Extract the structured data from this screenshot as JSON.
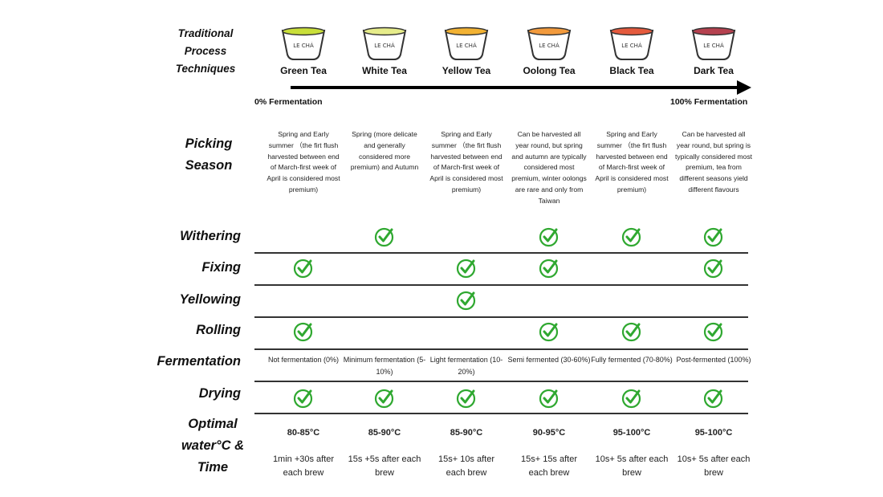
{
  "header": {
    "title": "Traditional Process Techniques"
  },
  "cup_label": "LE CHÁ",
  "teas": [
    {
      "name": "Green Tea",
      "liquor": "#c9df3a"
    },
    {
      "name": "White Tea",
      "liquor": "#e6ec8a"
    },
    {
      "name": "Yellow Tea",
      "liquor": "#f2b233"
    },
    {
      "name": "Oolong Tea",
      "liquor": "#f29a3c"
    },
    {
      "name": "Black Tea",
      "liquor": "#e45a3d"
    },
    {
      "name": "Dark Tea",
      "liquor": "#b5414f"
    }
  ],
  "fermentation_scale": {
    "start": "0% Fermentation",
    "end": "100% Fermentation"
  },
  "rows": {
    "picking_season": "Picking Season",
    "withering": "Withering",
    "fixing": "Fixing",
    "yellowing": "Yellowing",
    "rolling": "Rolling",
    "fermentation": "Fermentation",
    "drying": "Drying",
    "optimal": "Optimal water°C & Time"
  },
  "picking_season": [
    "Spring  and Early summer （the firt flush harvested between end of March-first week of April is considered most premium)",
    "Spring (more delicate and generally considered more premium) and Autumn",
    "Spring  and Early summer （the firt flush harvested between end of March-first week of April is considered most premium)",
    "Can be harvested all year round, but spring and autumn are typically considered most premium, winter oolongs are rare and only from Taiwan",
    "Spring  and Early summer （the firt flush harvested between end of March-first week of April is considered most premium)",
    "Can be harvested all year round, but spring is typically considered most premium, tea from different seasons yield different flavours"
  ],
  "process_checks": {
    "withering": [
      false,
      true,
      false,
      true,
      true,
      true
    ],
    "fixing": [
      true,
      false,
      true,
      true,
      false,
      true
    ],
    "yellowing": [
      false,
      false,
      true,
      false,
      false,
      false
    ],
    "rolling": [
      true,
      false,
      false,
      true,
      true,
      true
    ],
    "drying": [
      true,
      true,
      true,
      true,
      true,
      true
    ]
  },
  "fermentation": [
    "Not fermentation (0%)",
    "Minimum fermentation (5-10%)",
    "Light fermentation (10-20%)",
    "Semi fermented (30-60%)",
    "Fully fermented (70-80%)",
    "Post-fermented (100%)"
  ],
  "temperatures": [
    "80-85°C",
    "85-90°C",
    "85-90°C",
    "90-95°C",
    "95-100°C",
    "95-100°C"
  ],
  "times": [
    "1min +30s after each brew",
    "15s +5s after each brew",
    "15s+ 10s after each brew",
    "15s+ 15s after each brew",
    "10s+ 5s after each brew",
    "10s+ 5s after each brew"
  ],
  "colors": {
    "check": "#2fa830",
    "text": "#111111"
  }
}
